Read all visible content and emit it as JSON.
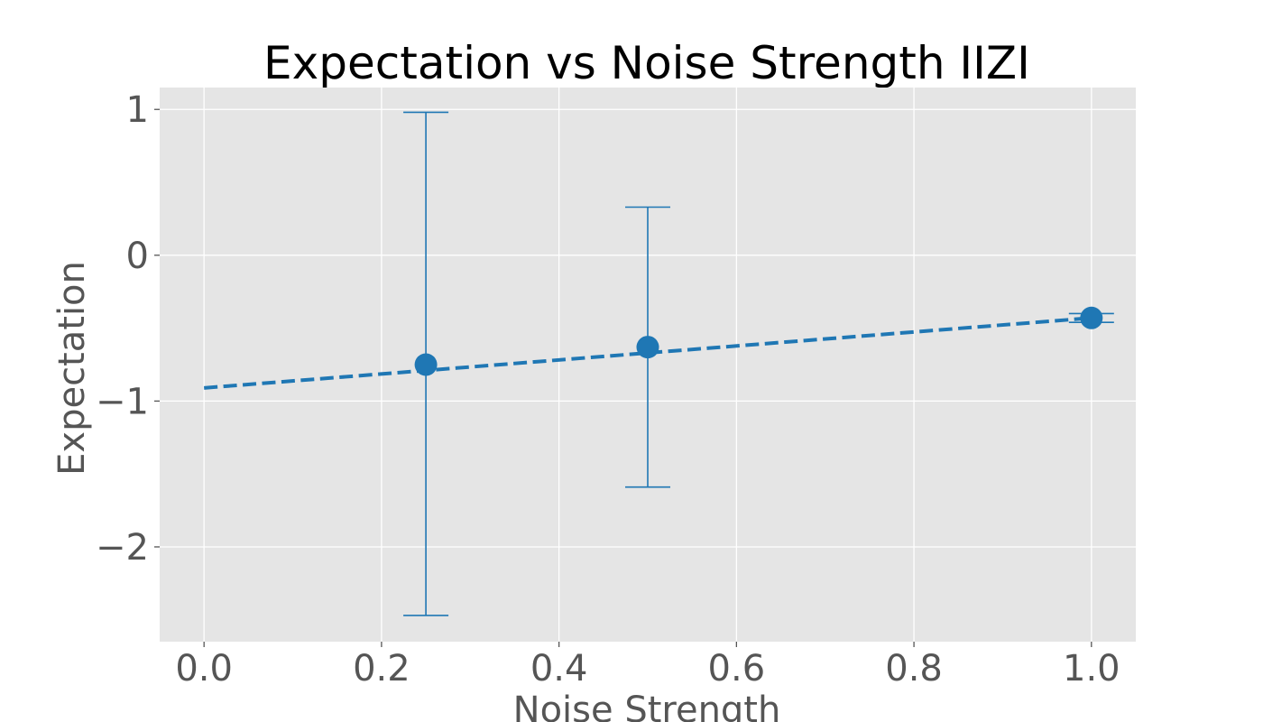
{
  "chart_data": {
    "type": "scatter",
    "title": "Expectation vs Noise Strength IIZI",
    "xlabel": "Noise Strength",
    "ylabel": "Expectation",
    "xlim": [
      -0.05,
      1.05
    ],
    "ylim": [
      -2.65,
      1.15
    ],
    "grid": true,
    "x_ticks": [
      0.0,
      0.2,
      0.4,
      0.6,
      0.8,
      1.0
    ],
    "x_tick_labels": [
      "0.0",
      "0.2",
      "0.4",
      "0.6",
      "0.8",
      "1.0"
    ],
    "y_ticks": [
      1,
      0,
      -1,
      -2
    ],
    "y_tick_labels": [
      "1",
      "0",
      "−1",
      "−2"
    ],
    "colors": {
      "series": "#1f77b4",
      "plot_background": "#e5e5e5",
      "grid": "#ffffff",
      "tick_label": "#555555"
    },
    "points": [
      {
        "x": 0.25,
        "y": -0.75,
        "yerr_low": -2.47,
        "yerr_high": 0.98
      },
      {
        "x": 0.5,
        "y": -0.63,
        "yerr_low": -1.59,
        "yerr_high": 0.33
      },
      {
        "x": 1.0,
        "y": -0.43,
        "yerr_low": -0.46,
        "yerr_high": -0.4
      }
    ],
    "fit_line": {
      "style": "dashed",
      "x": [
        0.0,
        1.0
      ],
      "y": [
        -0.91,
        -0.43
      ]
    }
  }
}
